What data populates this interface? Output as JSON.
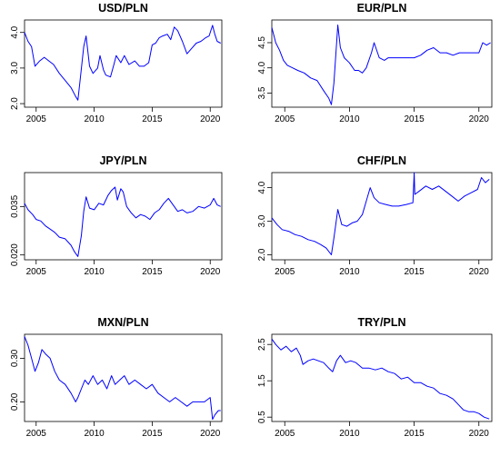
{
  "colors": {
    "line": "#0000ff",
    "frame": "#000000",
    "background": "#ffffff"
  },
  "chart_data": [
    {
      "type": "line",
      "title": "USD/PLN",
      "xlim": [
        2004,
        2021
      ],
      "ylim": [
        1.9,
        4.35
      ],
      "xticks": [
        2005,
        2010,
        2015,
        2020
      ],
      "yticks": [
        2.0,
        3.0,
        4.0
      ],
      "ytick_labels": [
        "2.0",
        "3.0",
        "4.0"
      ],
      "x": [
        2004.0,
        2004.3,
        2004.6,
        2004.9,
        2005.3,
        2005.7,
        2006.1,
        2006.5,
        2007.0,
        2007.5,
        2008.0,
        2008.4,
        2008.6,
        2008.8,
        2009.1,
        2009.3,
        2009.6,
        2009.9,
        2010.3,
        2010.5,
        2010.8,
        2011.0,
        2011.4,
        2011.7,
        2011.9,
        2012.3,
        2012.6,
        2013.0,
        2013.5,
        2013.9,
        2014.3,
        2014.7,
        2015.0,
        2015.3,
        2015.6,
        2015.9,
        2016.3,
        2016.6,
        2016.9,
        2017.2,
        2017.6,
        2018.0,
        2018.4,
        2018.8,
        2019.2,
        2019.6,
        2019.9,
        2020.2,
        2020.4,
        2020.6,
        2020.9
      ],
      "y": [
        4.0,
        3.75,
        3.6,
        3.05,
        3.2,
        3.3,
        3.2,
        3.1,
        2.85,
        2.65,
        2.45,
        2.2,
        2.1,
        2.7,
        3.6,
        3.9,
        3.05,
        2.85,
        3.0,
        3.35,
        2.95,
        2.8,
        2.75,
        3.1,
        3.35,
        3.15,
        3.35,
        3.1,
        3.2,
        3.05,
        3.05,
        3.15,
        3.65,
        3.7,
        3.85,
        3.9,
        3.95,
        3.8,
        4.15,
        4.05,
        3.75,
        3.4,
        3.55,
        3.7,
        3.75,
        3.85,
        3.9,
        4.2,
        3.95,
        3.75,
        3.7
      ]
    },
    {
      "type": "line",
      "title": "EUR/PLN",
      "xlim": [
        2004,
        2021
      ],
      "ylim": [
        3.22,
        4.95
      ],
      "xticks": [
        2005,
        2010,
        2015,
        2020
      ],
      "yticks": [
        3.5,
        4.0,
        4.5
      ],
      "ytick_labels": [
        "3.5",
        "4.0",
        "4.5"
      ],
      "x": [
        2004.0,
        2004.3,
        2004.6,
        2004.9,
        2005.2,
        2005.6,
        2006.0,
        2006.5,
        2007.0,
        2007.5,
        2008.0,
        2008.4,
        2008.6,
        2008.8,
        2009.1,
        2009.3,
        2009.6,
        2010.0,
        2010.4,
        2010.7,
        2011.0,
        2011.3,
        2011.7,
        2011.9,
        2012.3,
        2012.7,
        2013.0,
        2013.5,
        2014.0,
        2014.5,
        2015.0,
        2015.5,
        2016.0,
        2016.5,
        2017.0,
        2017.5,
        2018.0,
        2018.5,
        2019.0,
        2019.5,
        2020.0,
        2020.3,
        2020.6,
        2020.9
      ],
      "y": [
        4.8,
        4.5,
        4.35,
        4.15,
        4.05,
        4.0,
        3.95,
        3.9,
        3.8,
        3.75,
        3.55,
        3.4,
        3.27,
        3.7,
        4.85,
        4.4,
        4.2,
        4.1,
        3.95,
        3.95,
        3.9,
        4.0,
        4.3,
        4.5,
        4.2,
        4.15,
        4.2,
        4.2,
        4.2,
        4.2,
        4.2,
        4.25,
        4.35,
        4.4,
        4.3,
        4.3,
        4.25,
        4.3,
        4.3,
        4.3,
        4.3,
        4.5,
        4.45,
        4.5
      ]
    },
    {
      "type": "line",
      "title": "JPY/PLN",
      "xlim": [
        2004,
        2021
      ],
      "ylim": [
        0.0185,
        0.0455
      ],
      "xticks": [
        2005,
        2010,
        2015,
        2020
      ],
      "yticks": [
        0.02,
        0.035
      ],
      "ytick_labels": [
        "0.020",
        "0.035"
      ],
      "x": [
        2004.0,
        2004.3,
        2004.7,
        2005.0,
        2005.4,
        2005.8,
        2006.2,
        2006.6,
        2007.0,
        2007.5,
        2008.0,
        2008.3,
        2008.6,
        2008.9,
        2009.1,
        2009.3,
        2009.6,
        2010.0,
        2010.4,
        2010.8,
        2011.2,
        2011.5,
        2011.8,
        2012.0,
        2012.3,
        2012.5,
        2012.8,
        2013.2,
        2013.6,
        2014.0,
        2014.4,
        2014.8,
        2015.2,
        2015.6,
        2016.0,
        2016.4,
        2016.8,
        2017.2,
        2017.6,
        2018.0,
        2018.5,
        2019.0,
        2019.5,
        2020.0,
        2020.3,
        2020.6,
        2020.9
      ],
      "y": [
        0.036,
        0.034,
        0.0325,
        0.031,
        0.0305,
        0.029,
        0.028,
        0.027,
        0.0255,
        0.025,
        0.023,
        0.021,
        0.0195,
        0.026,
        0.0335,
        0.038,
        0.0345,
        0.034,
        0.036,
        0.0355,
        0.0385,
        0.04,
        0.041,
        0.037,
        0.0405,
        0.0395,
        0.035,
        0.033,
        0.0315,
        0.0325,
        0.032,
        0.031,
        0.033,
        0.034,
        0.036,
        0.0375,
        0.0355,
        0.0335,
        0.034,
        0.033,
        0.0335,
        0.035,
        0.0345,
        0.0355,
        0.0375,
        0.0355,
        0.035
      ]
    },
    {
      "type": "line",
      "title": "CHF/PLN",
      "xlim": [
        2004,
        2021
      ],
      "ylim": [
        1.85,
        4.45
      ],
      "xticks": [
        2005,
        2010,
        2015,
        2020
      ],
      "yticks": [
        2.0,
        3.0,
        4.0
      ],
      "ytick_labels": [
        "2.0",
        "3.0",
        "4.0"
      ],
      "x": [
        2004.0,
        2004.4,
        2004.8,
        2005.3,
        2005.8,
        2006.3,
        2006.8,
        2007.3,
        2007.8,
        2008.2,
        2008.6,
        2008.8,
        2009.1,
        2009.4,
        2009.8,
        2010.2,
        2010.6,
        2011.0,
        2011.3,
        2011.6,
        2011.9,
        2012.3,
        2012.8,
        2013.3,
        2013.8,
        2014.4,
        2014.9,
        2015.0,
        2015.05,
        2015.4,
        2015.9,
        2016.4,
        2016.9,
        2017.4,
        2017.9,
        2018.4,
        2018.9,
        2019.4,
        2019.9,
        2020.2,
        2020.5,
        2020.8
      ],
      "y": [
        3.1,
        2.9,
        2.75,
        2.7,
        2.6,
        2.55,
        2.45,
        2.4,
        2.3,
        2.2,
        2.0,
        2.5,
        3.35,
        2.9,
        2.85,
        2.95,
        3.0,
        3.2,
        3.6,
        4.0,
        3.7,
        3.55,
        3.5,
        3.45,
        3.45,
        3.5,
        3.55,
        4.45,
        3.8,
        3.9,
        4.05,
        3.95,
        4.05,
        3.9,
        3.75,
        3.6,
        3.75,
        3.85,
        3.95,
        4.3,
        4.15,
        4.25
      ]
    },
    {
      "type": "line",
      "title": "MXN/PLN",
      "xlim": [
        2004,
        2021
      ],
      "ylim": [
        0.155,
        0.355
      ],
      "xticks": [
        2005,
        2010,
        2015,
        2020
      ],
      "yticks": [
        0.2,
        0.3
      ],
      "ytick_labels": [
        "0.20",
        "0.30"
      ],
      "x": [
        2004.0,
        2004.3,
        2004.6,
        2004.9,
        2005.2,
        2005.5,
        2005.8,
        2006.2,
        2006.6,
        2007.0,
        2007.5,
        2008.0,
        2008.4,
        2008.6,
        2008.9,
        2009.2,
        2009.5,
        2009.9,
        2010.3,
        2010.7,
        2011.1,
        2011.5,
        2011.8,
        2012.2,
        2012.6,
        2013.0,
        2013.5,
        2014.0,
        2014.5,
        2015.0,
        2015.5,
        2016.0,
        2016.5,
        2017.0,
        2017.5,
        2018.0,
        2018.5,
        2019.0,
        2019.5,
        2020.0,
        2020.2,
        2020.4,
        2020.7,
        2020.9
      ],
      "y": [
        0.35,
        0.33,
        0.3,
        0.27,
        0.29,
        0.32,
        0.31,
        0.3,
        0.27,
        0.25,
        0.24,
        0.22,
        0.2,
        0.21,
        0.23,
        0.25,
        0.24,
        0.26,
        0.24,
        0.25,
        0.23,
        0.26,
        0.24,
        0.25,
        0.26,
        0.24,
        0.25,
        0.24,
        0.23,
        0.24,
        0.22,
        0.21,
        0.2,
        0.21,
        0.2,
        0.19,
        0.2,
        0.2,
        0.2,
        0.21,
        0.16,
        0.17,
        0.18,
        0.18
      ]
    },
    {
      "type": "line",
      "title": "TRY/PLN",
      "xlim": [
        2004,
        2021
      ],
      "ylim": [
        0.38,
        2.78
      ],
      "xticks": [
        2005,
        2010,
        2015,
        2020
      ],
      "yticks": [
        0.5,
        1.5,
        2.5
      ],
      "ytick_labels": [
        "0.5",
        "1.5",
        "2.5"
      ],
      "x": [
        2004.0,
        2004.3,
        2004.7,
        2005.1,
        2005.5,
        2005.9,
        2006.2,
        2006.4,
        2006.8,
        2007.2,
        2007.6,
        2008.0,
        2008.4,
        2008.7,
        2009.0,
        2009.3,
        2009.7,
        2010.1,
        2010.5,
        2011.0,
        2011.5,
        2012.0,
        2012.5,
        2013.0,
        2013.5,
        2014.0,
        2014.5,
        2015.0,
        2015.5,
        2016.0,
        2016.5,
        2017.0,
        2017.5,
        2018.0,
        2018.4,
        2018.8,
        2019.2,
        2019.6,
        2020.0,
        2020.4,
        2020.8
      ],
      "y": [
        2.65,
        2.5,
        2.35,
        2.45,
        2.3,
        2.4,
        2.2,
        1.95,
        2.05,
        2.1,
        2.05,
        2.0,
        1.85,
        1.75,
        2.05,
        2.2,
        2.0,
        2.05,
        2.0,
        1.85,
        1.85,
        1.8,
        1.85,
        1.75,
        1.7,
        1.55,
        1.6,
        1.45,
        1.45,
        1.35,
        1.3,
        1.15,
        1.1,
        1.0,
        0.85,
        0.7,
        0.65,
        0.65,
        0.6,
        0.5,
        0.45
      ]
    }
  ]
}
